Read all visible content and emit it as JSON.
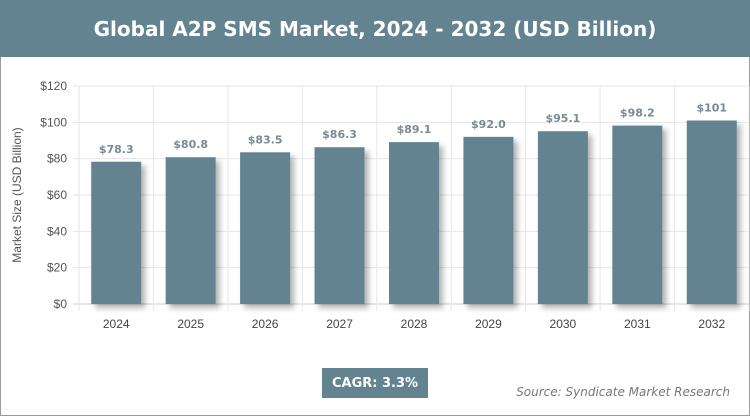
{
  "title": "Global A2P SMS Market, 2024 - 2032 (USD Billion)",
  "cagr": "CAGR: 3.3%",
  "source": "Source: Syndicate Market Research",
  "colors": {
    "bar": "#62838f",
    "header": "#62838f"
  },
  "chart_data": {
    "type": "bar",
    "title": "Global A2P SMS Market, 2024 - 2032 (USD Billion)",
    "xlabel": "",
    "ylabel": "Market Size (USD Billion)",
    "categories": [
      "2024",
      "2025",
      "2026",
      "2027",
      "2028",
      "2029",
      "2030",
      "2031",
      "2032"
    ],
    "values": [
      78.3,
      80.8,
      83.5,
      86.3,
      89.1,
      92.0,
      95.1,
      98.2,
      101
    ],
    "data_labels": [
      "$78.3",
      "$80.8",
      "$83.5",
      "$86.3",
      "$89.1",
      "$92.0",
      "$95.1",
      "$98.2",
      "$101"
    ],
    "ylim": [
      0,
      120
    ],
    "yticks": [
      "$0",
      "$20",
      "$40",
      "$60",
      "$80",
      "$100",
      "$120"
    ],
    "grid": true,
    "legend": "none"
  }
}
